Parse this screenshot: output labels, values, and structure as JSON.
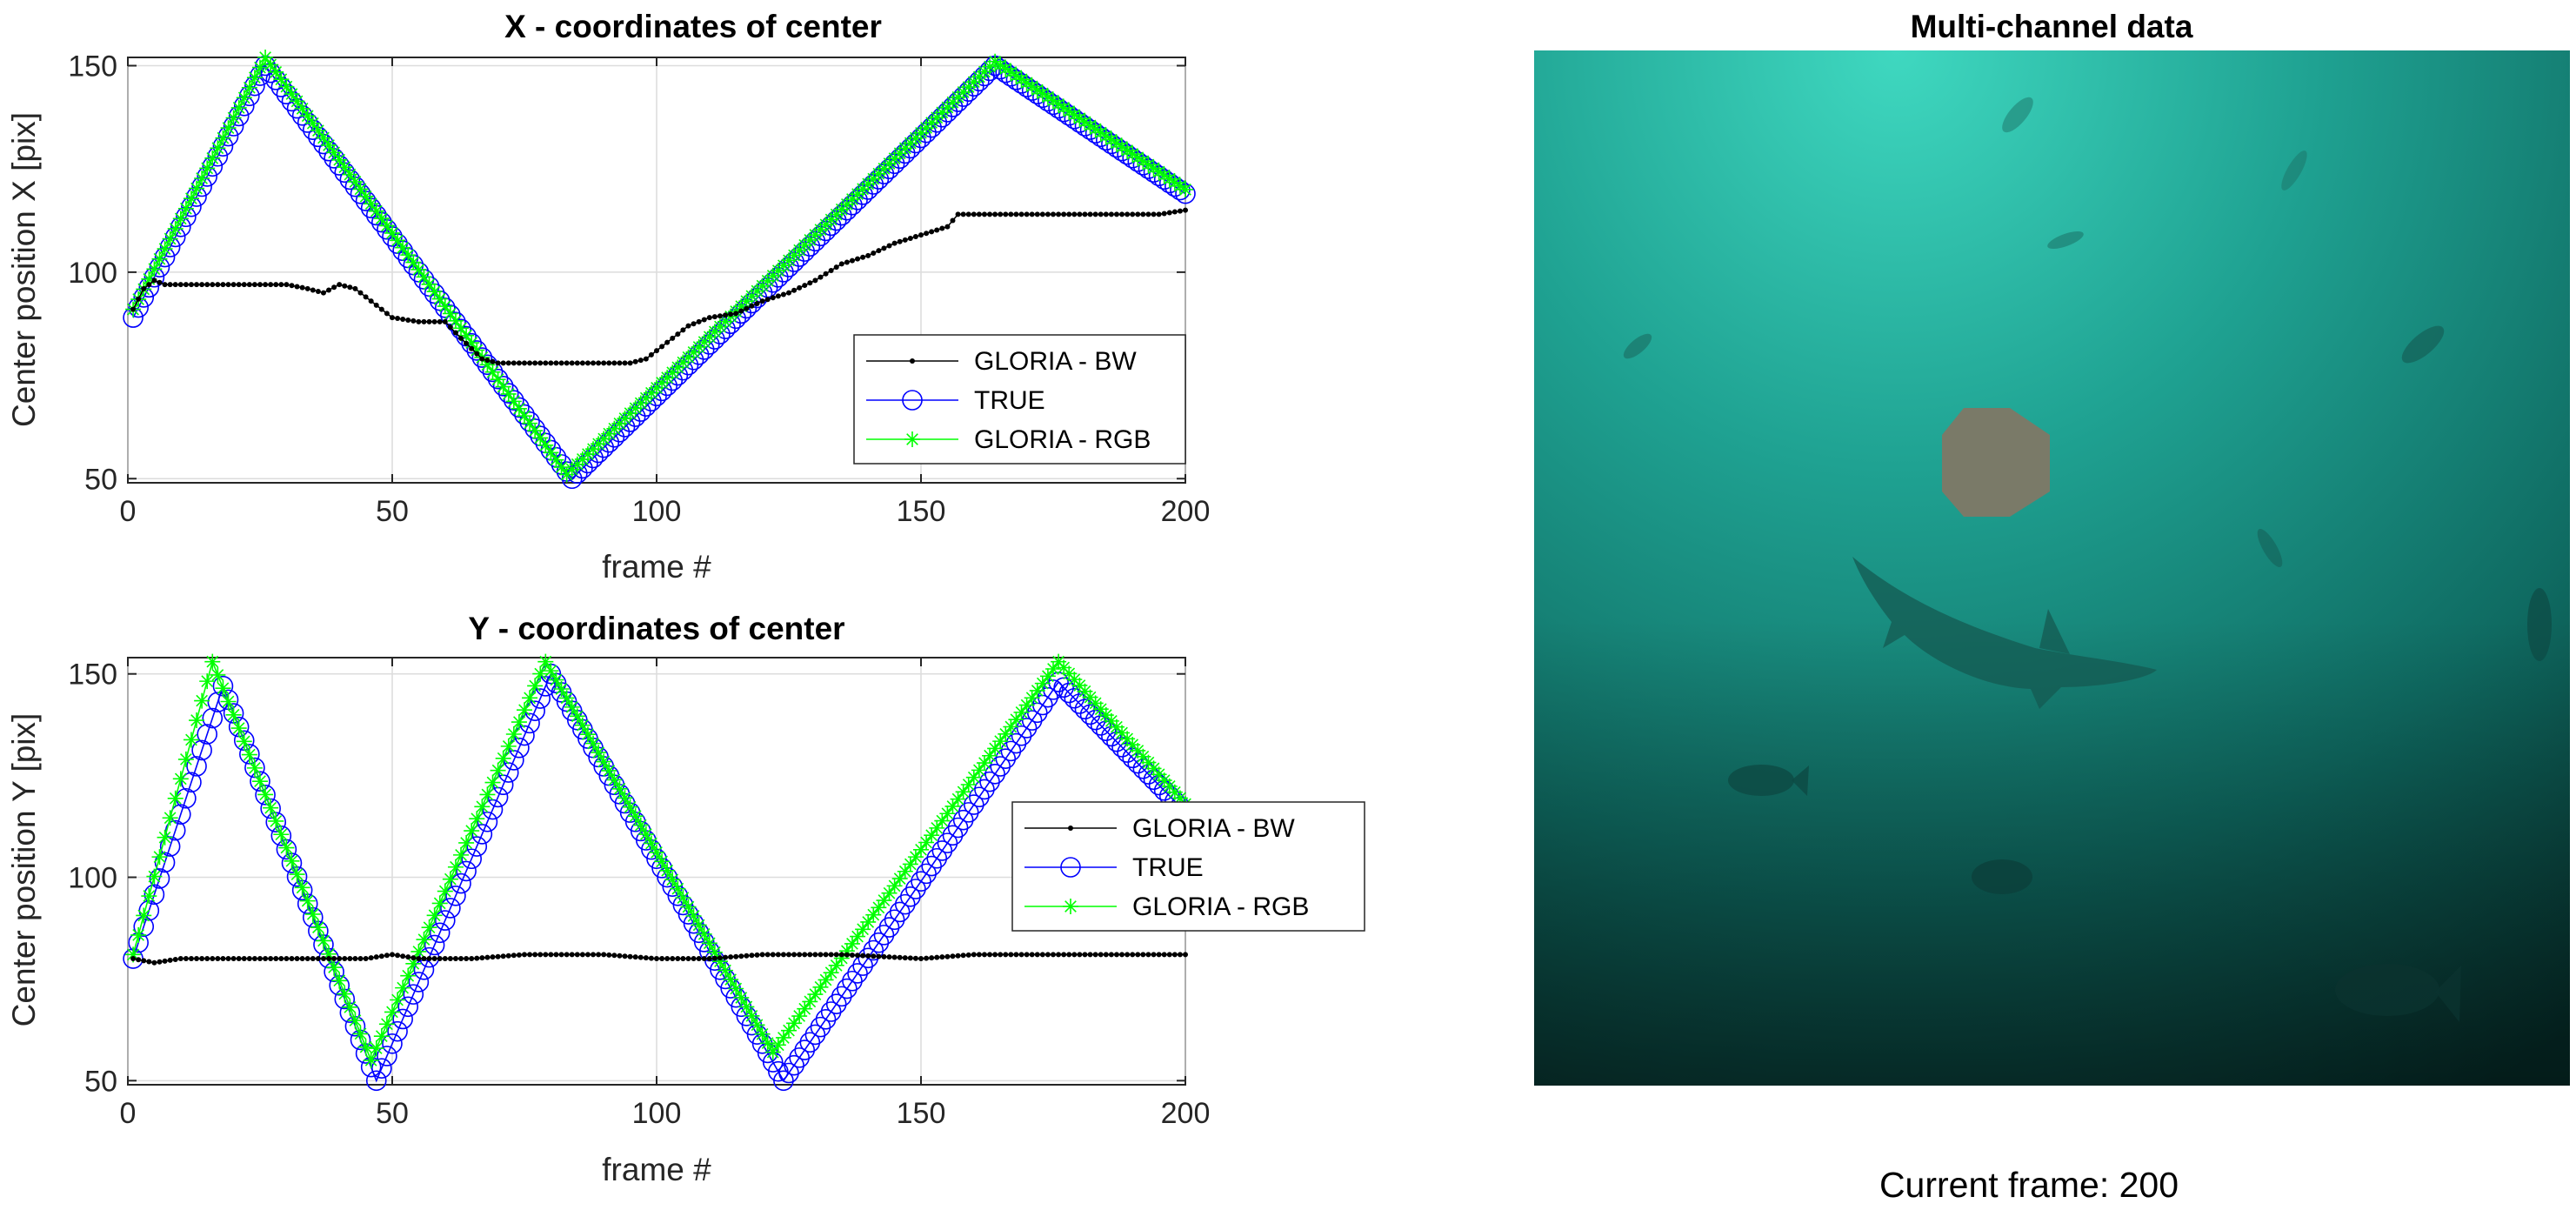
{
  "chart_data": [
    {
      "type": "line",
      "title": "X - coordinates of center",
      "xlabel": "frame #",
      "ylabel": "Center position X [pix]",
      "xlim": [
        0,
        200
      ],
      "ylim": [
        49,
        152
      ],
      "xticks": [
        0,
        50,
        100,
        150,
        200
      ],
      "yticks": [
        50,
        100,
        150
      ],
      "grid": true,
      "legend_location": "right-middle",
      "legend": [
        "GLORIA - BW",
        "TRUE",
        "GLORIA - RGB"
      ],
      "series": [
        {
          "name": "GLORIA - BW",
          "color": "#000000",
          "marker": "dot",
          "points": [
            [
              1,
              91
            ],
            [
              3,
              96
            ],
            [
              5,
              98
            ],
            [
              7,
              97
            ],
            [
              10,
              97
            ],
            [
              20,
              97
            ],
            [
              30,
              97
            ],
            [
              34,
              96
            ],
            [
              37,
              95
            ],
            [
              40,
              97
            ],
            [
              43,
              96
            ],
            [
              46,
              93
            ],
            [
              50,
              89
            ],
            [
              55,
              88
            ],
            [
              60,
              88
            ],
            [
              63,
              84
            ],
            [
              67,
              79
            ],
            [
              70,
              78
            ],
            [
              80,
              78
            ],
            [
              95,
              78
            ],
            [
              98,
              79
            ],
            [
              102,
              83
            ],
            [
              106,
              87
            ],
            [
              110,
              89
            ],
            [
              115,
              90
            ],
            [
              120,
              93
            ],
            [
              125,
              95
            ],
            [
              130,
              98
            ],
            [
              135,
              102
            ],
            [
              140,
              104
            ],
            [
              145,
              107
            ],
            [
              150,
              109
            ],
            [
              155,
              111
            ],
            [
              157,
              114
            ],
            [
              165,
              114
            ],
            [
              180,
              114
            ],
            [
              195,
              114
            ],
            [
              200,
              115
            ]
          ]
        },
        {
          "name": "TRUE",
          "color": "#0000ff",
          "marker": "circle",
          "points": [
            [
              1,
              89
            ],
            [
              26,
              150
            ],
            [
              84,
              50
            ],
            [
              164,
              150
            ],
            [
              200,
              119
            ]
          ]
        },
        {
          "name": "GLORIA - RGB",
          "color": "#00ff00",
          "marker": "star",
          "points": [
            [
              1,
              91
            ],
            [
              26,
              152
            ],
            [
              83,
              51
            ],
            [
              164,
              151
            ],
            [
              200,
              120
            ]
          ]
        }
      ]
    },
    {
      "type": "line",
      "title": "Y - coordinates of center",
      "xlabel": "frame #",
      "ylabel": "Center position Y [pix]",
      "xlim": [
        0,
        200
      ],
      "ylim": [
        49,
        154
      ],
      "xticks": [
        0,
        50,
        100,
        150,
        200
      ],
      "yticks": [
        50,
        100,
        150
      ],
      "grid": true,
      "legend_location": "right-middle",
      "legend": [
        "GLORIA - BW",
        "TRUE",
        "GLORIA - RGB"
      ],
      "series": [
        {
          "name": "GLORIA - BW",
          "color": "#000000",
          "marker": "dot",
          "points": [
            [
              1,
              80
            ],
            [
              5,
              79
            ],
            [
              10,
              80
            ],
            [
              30,
              80
            ],
            [
              45,
              80
            ],
            [
              50,
              81
            ],
            [
              55,
              80
            ],
            [
              65,
              80
            ],
            [
              75,
              81
            ],
            [
              90,
              81
            ],
            [
              100,
              80
            ],
            [
              110,
              80
            ],
            [
              120,
              81
            ],
            [
              135,
              81
            ],
            [
              150,
              80
            ],
            [
              160,
              81
            ],
            [
              180,
              81
            ],
            [
              200,
              81
            ]
          ]
        },
        {
          "name": "TRUE",
          "color": "#0000ff",
          "marker": "circle",
          "points": [
            [
              1,
              80
            ],
            [
              18,
              147
            ],
            [
              47,
              50
            ],
            [
              80,
              150
            ],
            [
              124,
              50
            ],
            [
              176,
              148
            ],
            [
              200,
              116
            ]
          ]
        },
        {
          "name": "GLORIA - RGB",
          "color": "#00ff00",
          "marker": "star",
          "points": [
            [
              1,
              81
            ],
            [
              16,
              153
            ],
            [
              46,
              55
            ],
            [
              79,
              153
            ],
            [
              122,
              57
            ],
            [
              176,
              153
            ],
            [
              200,
              118
            ]
          ]
        }
      ]
    }
  ],
  "image_panel": {
    "title": "Multi-channel data",
    "caption": "Current frame: 200",
    "tracked_object_color": "#7a7a68"
  }
}
